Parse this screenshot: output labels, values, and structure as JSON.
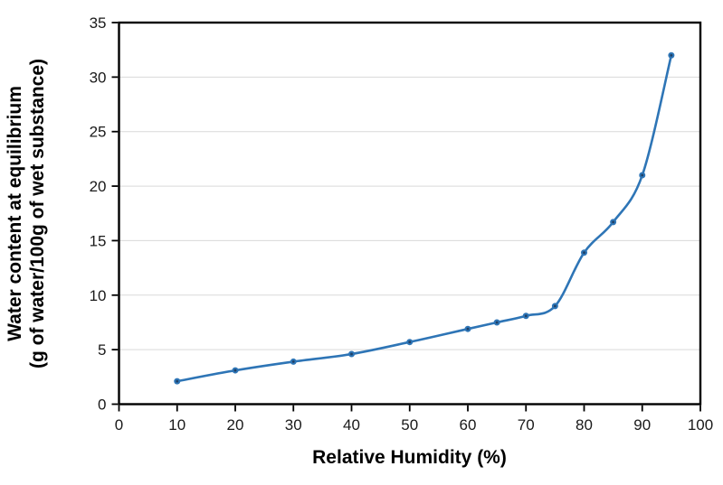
{
  "chart_data": {
    "type": "line",
    "title": "",
    "xlabel": "Relative Humidity (%)",
    "ylabel": "Water content at equilibrium (g of water/100g of wet substance)",
    "ylabel_lines": [
      "Water content at equilibrium",
      "(g of water/100g of wet substance)"
    ],
    "x": [
      10,
      20,
      30,
      40,
      50,
      60,
      65,
      70,
      75,
      80,
      85,
      90,
      95
    ],
    "values": [
      2.1,
      3.1,
      3.9,
      4.6,
      5.7,
      6.9,
      7.5,
      8.1,
      9.0,
      13.9,
      16.7,
      21.0,
      32.0
    ],
    "xlim": [
      0,
      100
    ],
    "ylim": [
      0,
      35
    ],
    "x_ticks": [
      0,
      10,
      20,
      30,
      40,
      50,
      60,
      70,
      80,
      90,
      100
    ],
    "y_ticks": [
      0,
      5,
      10,
      15,
      20,
      25,
      30,
      35
    ],
    "grid": "horizontal-only",
    "legend": "none",
    "line_style": "smooth",
    "marker": "circle"
  },
  "colors": {
    "line": "#2E75B6",
    "marker_fill": "#2E75B6",
    "marker_center": "#1F4066",
    "gridline": "#D9D9D9",
    "axis": "#000000",
    "tick_label": "#1A1A1A",
    "background": "#FFFFFF"
  }
}
